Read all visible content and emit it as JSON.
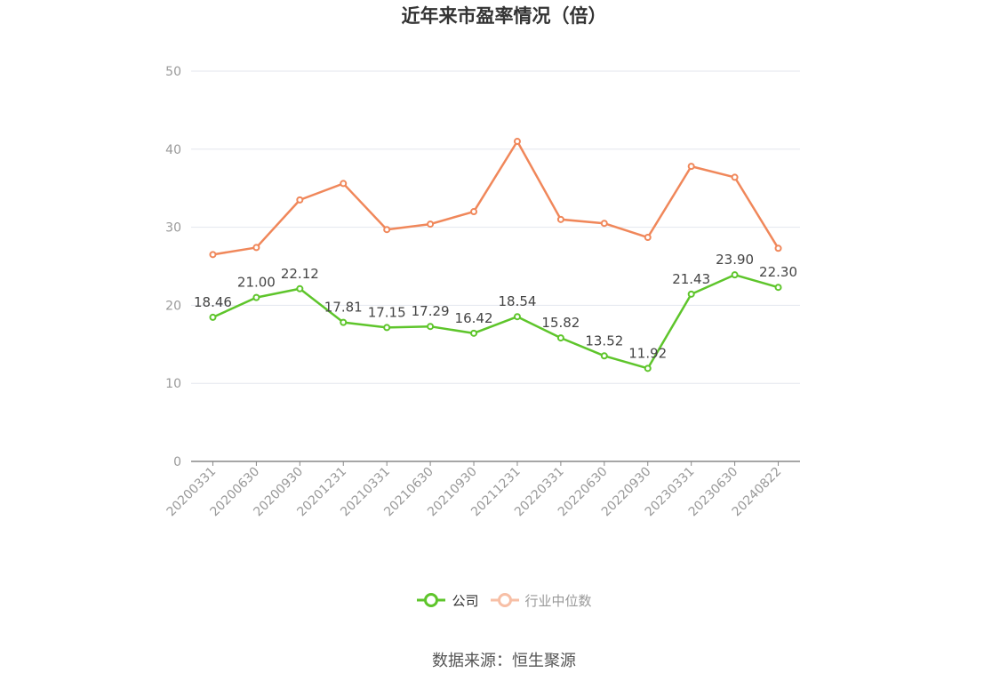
{
  "chart_data": {
    "type": "line",
    "title": "近年来市盈率情况（倍）",
    "categories": [
      "20200331",
      "20200630",
      "20200930",
      "20201231",
      "20210331",
      "20210630",
      "20210930",
      "20211231",
      "20220331",
      "20220630",
      "20220930",
      "20230331",
      "20230630",
      "20240822"
    ],
    "series": [
      {
        "name": "公司",
        "color": "#5ec52b",
        "values": [
          18.46,
          21.0,
          22.12,
          17.81,
          17.15,
          17.29,
          16.42,
          18.54,
          15.82,
          13.52,
          11.92,
          21.43,
          23.9,
          22.3
        ],
        "labels": [
          "18.46",
          "21.00",
          "22.12",
          "17.81",
          "17.15",
          "17.29",
          "16.42",
          "18.54",
          "15.82",
          "13.52",
          "11.92",
          "21.43",
          "23.90",
          "22.30"
        ]
      },
      {
        "name": "行业中位数",
        "color": "#f0875a",
        "values": [
          26.5,
          27.4,
          33.5,
          35.6,
          29.7,
          30.4,
          32.0,
          41.0,
          31.0,
          30.5,
          28.7,
          37.8,
          36.4,
          27.3
        ]
      }
    ],
    "yticks": [
      "0",
      "10",
      "20",
      "30",
      "40",
      "50"
    ],
    "ylim": [
      0,
      50
    ],
    "grid": true,
    "legend_position": "bottom"
  },
  "legend": {
    "company": "公司",
    "industry": "行业中位数"
  },
  "source": "数据来源：恒生聚源"
}
